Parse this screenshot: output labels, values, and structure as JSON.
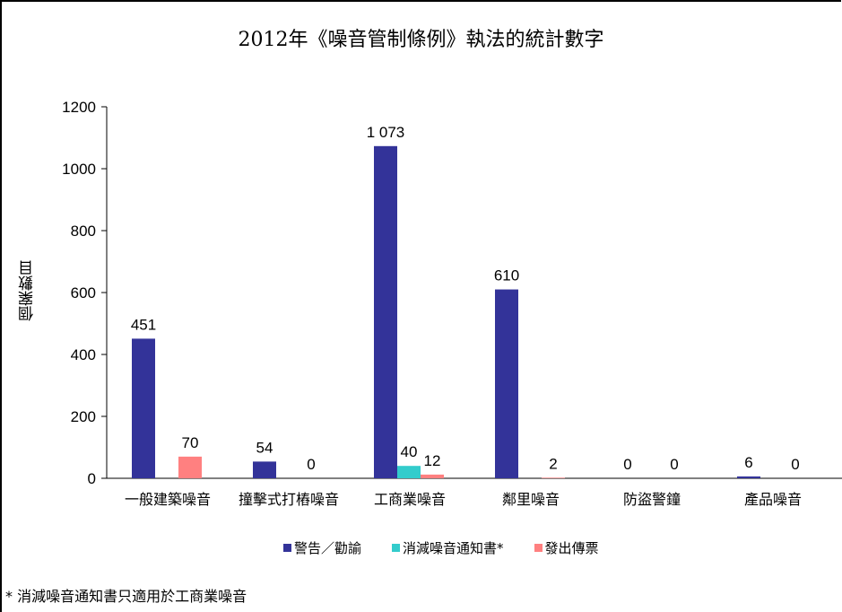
{
  "title": "2012年《噪音管制條例》執法的統計數字",
  "footnote": "* 消減噪音通知書只適用於工商業噪音",
  "colors": {
    "series_0": "#333399",
    "series_1": "#33CCCC",
    "series_2": "#FF8080"
  },
  "legend": [
    {
      "label": "警告／勸諭",
      "color": "#333399"
    },
    {
      "label": "消減噪音通知書*",
      "color": "#33CCCC"
    },
    {
      "label": "發出傳票",
      "color": "#FF8080"
    }
  ],
  "chart_data": {
    "type": "bar",
    "title": "2012年《噪音管制條例》執法的統計數字",
    "xlabel": "",
    "ylabel": "個案數目",
    "ylim": [
      0,
      1200
    ],
    "yticks": [
      0,
      200,
      400,
      600,
      800,
      1000,
      1200
    ],
    "grid": false,
    "legend_position": "bottom",
    "categories": [
      "一般建築噪音",
      "撞擊式打樁噪音",
      "工商業噪音",
      "鄰里噪音",
      "防盜警鐘",
      "產品噪音"
    ],
    "series": [
      {
        "name": "警告／勸諭",
        "color": "#333399",
        "values": [
          451,
          54,
          1073,
          610,
          0,
          6
        ],
        "labels": [
          "451",
          "54",
          "1 073",
          "610",
          "0",
          "6"
        ]
      },
      {
        "name": "消減噪音通知書*",
        "color": "#33CCCC",
        "values": [
          null,
          null,
          40,
          null,
          null,
          null
        ],
        "labels": [
          "",
          "",
          "40",
          "",
          "",
          ""
        ]
      },
      {
        "name": "發出傳票",
        "color": "#FF8080",
        "values": [
          70,
          0,
          12,
          2,
          0,
          0
        ],
        "labels": [
          "70",
          "0",
          "12",
          "2",
          "0",
          "0"
        ]
      }
    ],
    "annotations": [
      "* 消減噪音通知書只適用於工商業噪音"
    ]
  }
}
